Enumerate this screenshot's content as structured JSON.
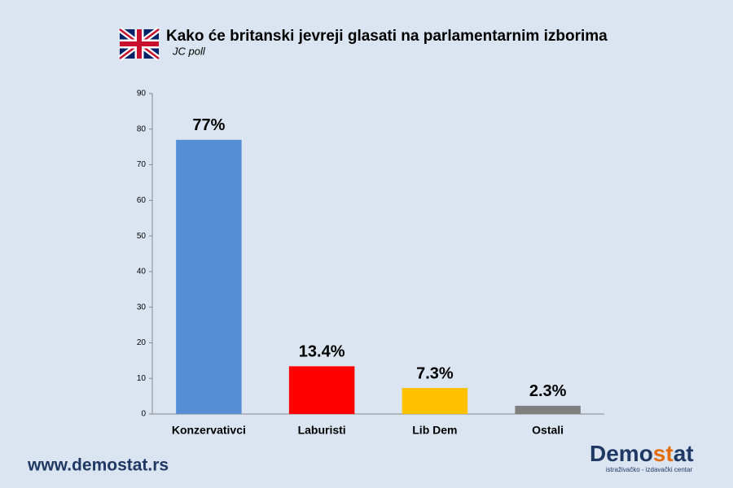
{
  "chart_data": {
    "type": "bar",
    "title": "Kako će britanski jevreji glasati na parlamentarnim izborima",
    "subtitle": "JC poll",
    "categories": [
      "Konzervativci",
      "Laburisti",
      "Lib Dem",
      "Ostali"
    ],
    "values": [
      77,
      13.4,
      7.3,
      2.3
    ],
    "value_labels": [
      "77%",
      "13.4%",
      "7.3%",
      "2.3%"
    ],
    "colors": [
      "#558ed5",
      "#ff0000",
      "#ffc000",
      "#7f7f7f"
    ],
    "ylim": [
      0,
      90
    ],
    "yticks": [
      0,
      10,
      20,
      30,
      40,
      50,
      60,
      70,
      80,
      90
    ],
    "grid": false
  },
  "footer": {
    "url": "www.demostat.rs",
    "logo_parts": [
      "Demo",
      "st",
      "at"
    ],
    "logo_tagline": "istraživačko - izdavački centar"
  }
}
